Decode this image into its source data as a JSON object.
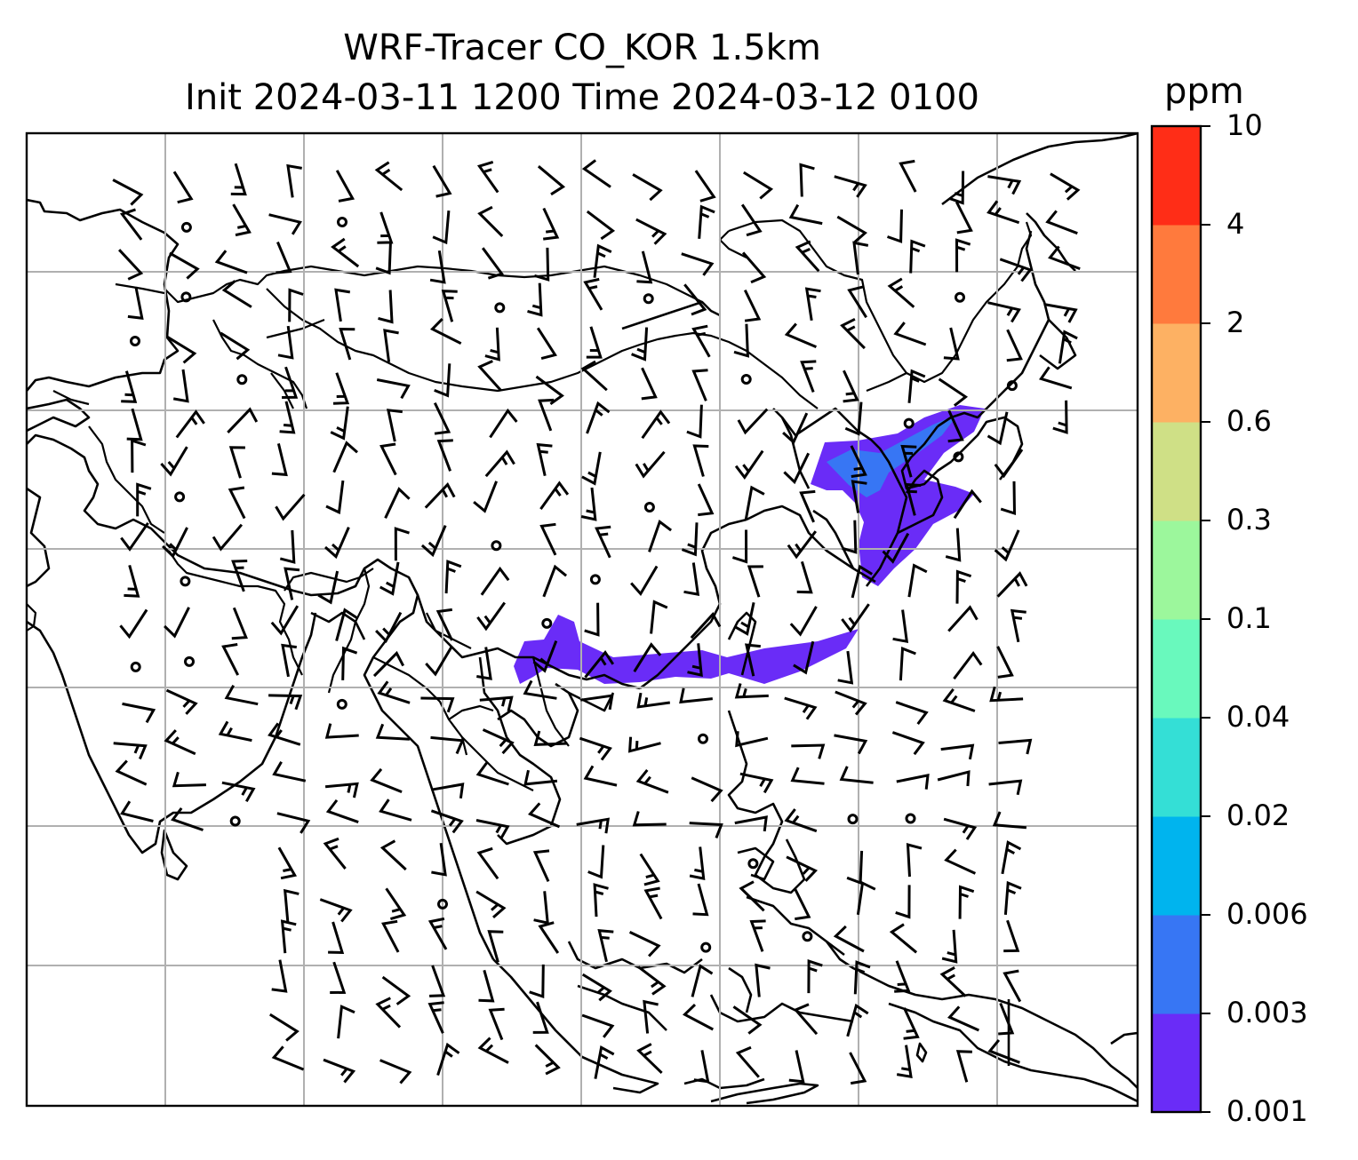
{
  "title": {
    "line1": "WRF-Tracer CO_KOR 1.5km",
    "line2": "Init 2024-03-11 1200 Time 2024-03-12 0100"
  },
  "colorbar": {
    "units": "ppm",
    "levels": [
      "0.001",
      "0.003",
      "0.006",
      "0.02",
      "0.04",
      "0.1",
      "0.3",
      "0.6",
      "2",
      "4",
      "10"
    ],
    "colors": [
      "#6a2cf7",
      "#3776f4",
      "#00b4ee",
      "#34dfd6",
      "#69f9bd",
      "#9cf79c",
      "#cfe086",
      "#fdb163",
      "#ff7a3d",
      "#ff2d17"
    ]
  },
  "map": {
    "feature_color": "#6a2cf7",
    "feature_color_alt": "#3776f4",
    "gridline_color": "#b0b0b0"
  }
}
